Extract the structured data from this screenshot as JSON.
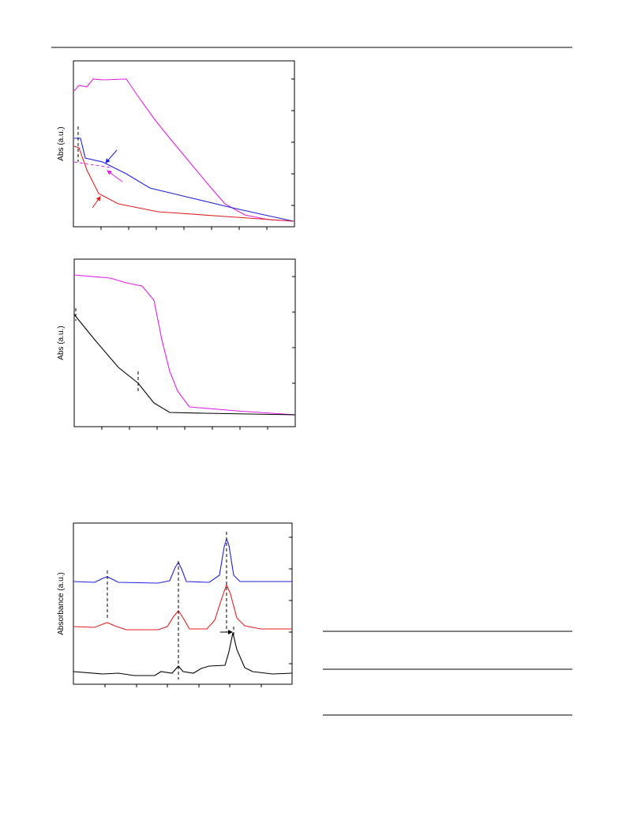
{
  "figure_a": {
    "y_label": "Abs (a.u.)"
  },
  "figure_b": {
    "y_label": "Abs (a.u.)"
  },
  "figure_c": {
    "y_label": "Absorbance (a.u.)"
  }
}
